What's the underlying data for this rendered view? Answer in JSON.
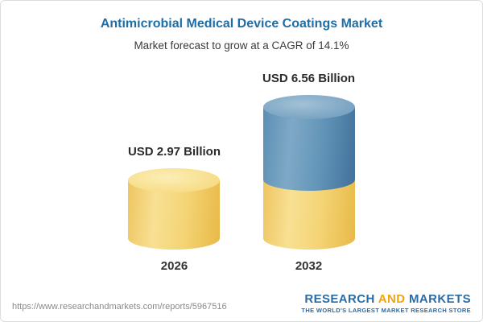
{
  "page": {
    "title": "Antimicrobial Medical Device Coatings Market",
    "subtitle": "Market forecast to grow at a CAGR of 14.1%"
  },
  "chart_data": {
    "type": "bar",
    "title": "Antimicrobial Medical Device Coatings Market",
    "subtitle": "Market forecast to grow at a CAGR of 14.1%",
    "categories": [
      "2026",
      "2032"
    ],
    "values": [
      2.97,
      6.56
    ],
    "value_labels": [
      "USD 2.97 Billion",
      "USD 6.56 Billion"
    ],
    "unit": "USD Billion",
    "cagr": "14.1%",
    "bar_style": "3d-cylinder",
    "legend_position": "none",
    "grid": false,
    "colors": {
      "base_segment": "#F2CD6B",
      "growth_segment": "#5C8FB4",
      "title": "#1C6EA9"
    },
    "notes": "2032 cylinder is stacked: yellow base portion equals the 2026 value, blue top portion represents growth to 6.56"
  },
  "footer": {
    "url": "https://www.researchandmarkets.com/reports/5967516",
    "logo": {
      "word1": "RESEARCH",
      "word2": "AND",
      "word3": "MARKETS",
      "tagline": "THE WORLD'S LARGEST MARKET RESEARCH STORE"
    }
  }
}
